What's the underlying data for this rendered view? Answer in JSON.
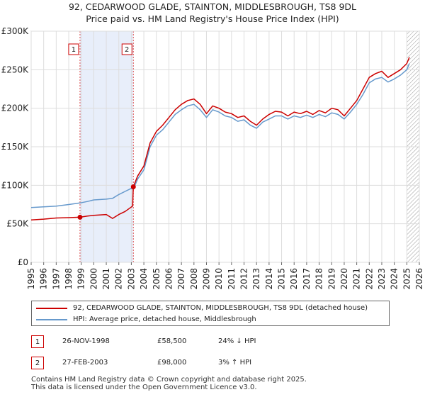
{
  "chart_title_line1": "92, CEDARWOOD GLADE, STAINTON, MIDDLESBROUGH, TS8 9DL",
  "chart_title_line2": "Price paid vs. HM Land Registry's House Price Index (HPI)",
  "colors": {
    "property": "#cc0000",
    "hpi": "#6699cc",
    "shade": "#e8eefa",
    "grid": "#dddddd"
  },
  "legend": {
    "property_label": "92, CEDARWOOD GLADE, STAINTON, MIDDLESBROUGH, TS8 9DL (detached house)",
    "hpi_label": "HPI: Average price, detached house, Middlesbrough"
  },
  "transactions": [
    {
      "num": "1",
      "date": "26-NOV-1998",
      "price": "£58,500",
      "hpi_rel": "24% ↓ HPI"
    },
    {
      "num": "2",
      "date": "27-FEB-2003",
      "price": "£98,000",
      "hpi_rel": "3% ↑ HPI"
    }
  ],
  "footer": {
    "line1": "Contains HM Land Registry data © Crown copyright and database right 2025.",
    "line2": "This data is licensed under the Open Government Licence v3.0."
  },
  "chart_data": {
    "type": "line",
    "ylim": [
      0,
      300000
    ],
    "xlim": [
      1995,
      2026
    ],
    "y_ticks": [
      {
        "value": 0,
        "label": "£0"
      },
      {
        "value": 50000,
        "label": "£50K"
      },
      {
        "value": 100000,
        "label": "£100K"
      },
      {
        "value": 150000,
        "label": "£150K"
      },
      {
        "value": 200000,
        "label": "£200K"
      },
      {
        "value": 250000,
        "label": "£250K"
      },
      {
        "value": 300000,
        "label": "£300K"
      }
    ],
    "x_ticks": [
      "1995",
      "1996",
      "1997",
      "1998",
      "1999",
      "2000",
      "2001",
      "2002",
      "2003",
      "2004",
      "2005",
      "2006",
      "2007",
      "2008",
      "2009",
      "2010",
      "2011",
      "2012",
      "2013",
      "2014",
      "2015",
      "2016",
      "2017",
      "2018",
      "2019",
      "2020",
      "2021",
      "2022",
      "2023",
      "2024",
      "2025",
      "2026"
    ],
    "shaded_period": {
      "from": 1998.9,
      "to": 2003.16
    },
    "hatch_from": 2025.0,
    "markers": [
      {
        "label": "1",
        "x": 1998.9,
        "y": 58500
      },
      {
        "label": "2",
        "x": 2003.16,
        "y": 98000
      }
    ],
    "series": [
      {
        "name": "92, CEDARWOOD GLADE, STAINTON, MIDDLESBROUGH, TS8 9DL (detached house)",
        "x": [
          1995,
          1996,
          1997,
          1998,
          1998.9,
          1999.5,
          2000,
          2001,
          2001.5,
          2002,
          2002.5,
          2003.1,
          2003.16,
          2003.5,
          2004,
          2004.5,
          2005,
          2005.5,
          2006,
          2006.5,
          2007,
          2007.5,
          2008,
          2008.5,
          2009,
          2009.5,
          2010,
          2010.5,
          2011,
          2011.5,
          2012,
          2012.5,
          2013,
          2013.5,
          2014,
          2014.5,
          2015,
          2015.5,
          2016,
          2016.5,
          2017,
          2017.5,
          2018,
          2018.5,
          2019,
          2019.5,
          2020,
          2020.5,
          2021,
          2021.5,
          2022,
          2022.5,
          2023,
          2023.5,
          2024,
          2024.5,
          2025,
          2025.2
        ],
        "values": [
          55000,
          56000,
          57500,
          58000,
          58500,
          60000,
          61000,
          62000,
          57000,
          62000,
          66000,
          73000,
          98000,
          112000,
          125000,
          155000,
          170000,
          178000,
          188000,
          198000,
          205000,
          210000,
          212000,
          205000,
          193000,
          203000,
          200000,
          195000,
          193000,
          188000,
          190000,
          183000,
          178000,
          186000,
          192000,
          196000,
          195000,
          190000,
          195000,
          193000,
          196000,
          192000,
          197000,
          194000,
          200000,
          198000,
          190000,
          200000,
          210000,
          225000,
          240000,
          245000,
          248000,
          240000,
          245000,
          250000,
          258000,
          266000
        ]
      },
      {
        "name": "HPI: Average price, detached house, Middlesbrough",
        "x": [
          1995,
          1996,
          1997,
          1998,
          1998.9,
          1999.5,
          2000,
          2001,
          2001.5,
          2002,
          2002.5,
          2003,
          2003.16,
          2003.5,
          2004,
          2004.5,
          2005,
          2005.5,
          2006,
          2006.5,
          2007,
          2007.5,
          2008,
          2008.5,
          2009,
          2009.5,
          2010,
          2010.5,
          2011,
          2011.5,
          2012,
          2012.5,
          2013,
          2013.5,
          2014,
          2014.5,
          2015,
          2015.5,
          2016,
          2016.5,
          2017,
          2017.5,
          2018,
          2018.5,
          2019,
          2019.5,
          2020,
          2020.5,
          2021,
          2021.5,
          2022,
          2022.5,
          2023,
          2023.5,
          2024,
          2024.5,
          2025,
          2025.2
        ],
        "values": [
          71000,
          72000,
          73000,
          75000,
          77000,
          79000,
          81000,
          82000,
          83000,
          88000,
          92000,
          96000,
          95000,
          108000,
          120000,
          150000,
          165000,
          172000,
          182000,
          192000,
          198000,
          203000,
          205000,
          198000,
          188000,
          198000,
          195000,
          190000,
          188000,
          183000,
          185000,
          178000,
          174000,
          182000,
          186000,
          190000,
          190000,
          186000,
          190000,
          188000,
          191000,
          188000,
          192000,
          189000,
          194000,
          192000,
          186000,
          195000,
          205000,
          218000,
          233000,
          238000,
          240000,
          234000,
          238000,
          243000,
          250000,
          258000
        ]
      }
    ]
  }
}
